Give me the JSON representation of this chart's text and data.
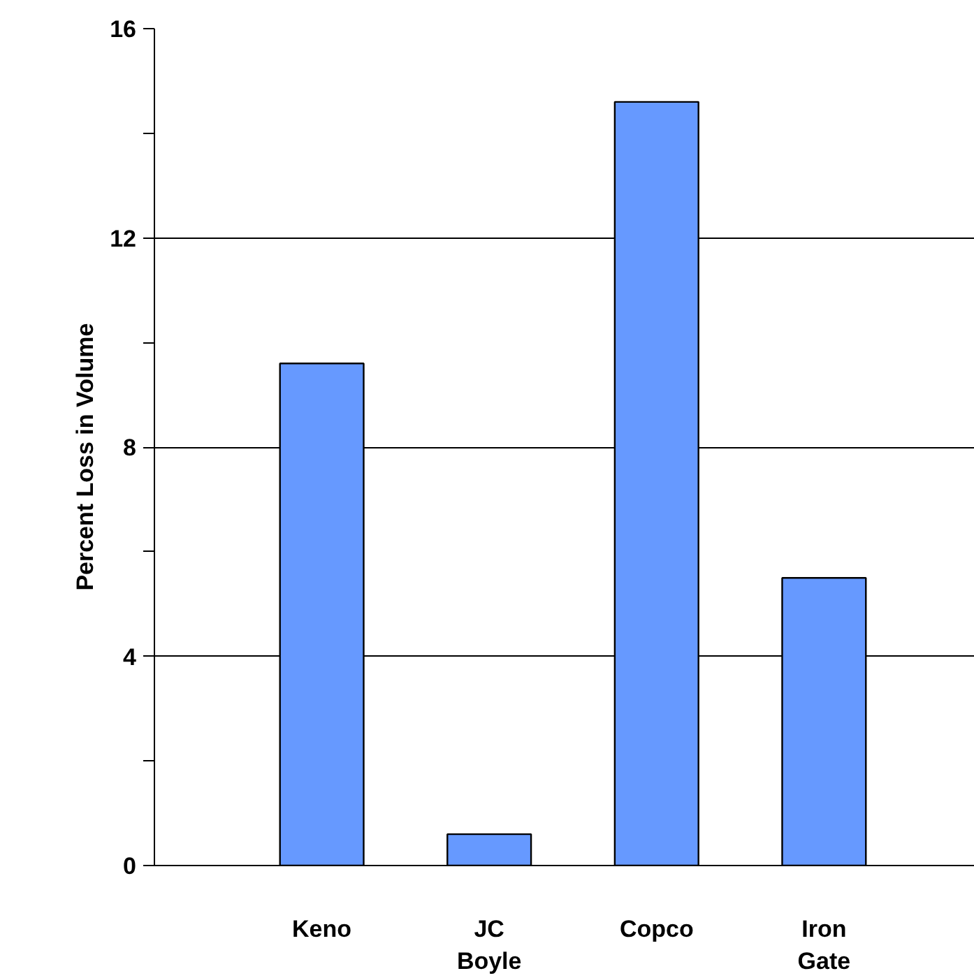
{
  "chart_data": {
    "type": "bar",
    "ylabel": "Percent  Loss  in  Volume",
    "categories": [
      "Keno",
      "JC Boyle",
      "Copco",
      "Iron Gate"
    ],
    "values": [
      9.6,
      0.6,
      14.6,
      5.5
    ],
    "color": "#6699ff",
    "ylim": [
      0,
      16
    ],
    "yticks": [
      0,
      {
        "value": 2,
        "label": null
      },
      4,
      {
        "value": 6,
        "label": null
      },
      8,
      {
        "value": 10,
        "label": null
      },
      12,
      {
        "value": 14,
        "label": null
      },
      16
    ],
    "grid": "y"
  }
}
